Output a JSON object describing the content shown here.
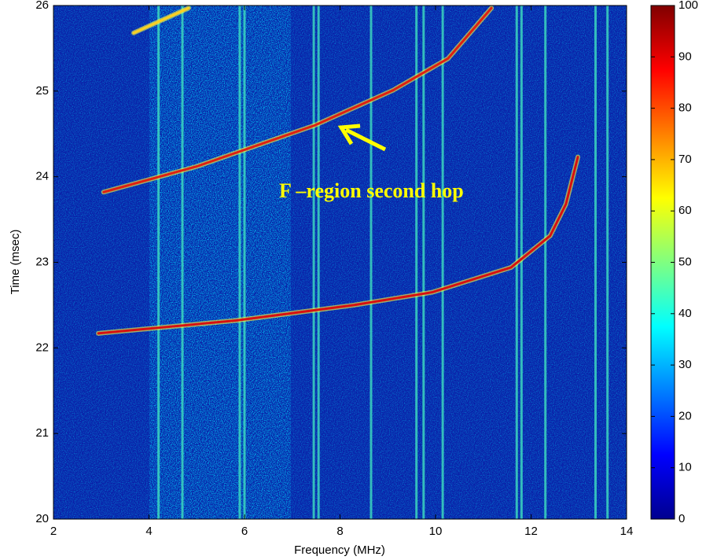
{
  "chart_data": {
    "type": "spectrogram",
    "x_label": "Frequency (MHz)",
    "y_label": "Time (msec)",
    "annotation": "F –region second hop",
    "xlim": [
      2,
      14
    ],
    "xticks": [
      2,
      4,
      6,
      8,
      10,
      12,
      14
    ],
    "ylim": [
      20,
      26
    ],
    "yticks": [
      20,
      21,
      22,
      23,
      24,
      25,
      26
    ],
    "clim": [
      0,
      100
    ],
    "cticks": [
      0,
      10,
      20,
      30,
      40,
      50,
      60,
      70,
      80,
      90,
      100
    ],
    "colormap": [
      "#00008f",
      "#0000ff",
      "#0080ff",
      "#00ffff",
      "#80ff80",
      "#ffff00",
      "#ff8000",
      "#ff0000",
      "#800000"
    ],
    "background": "#0a1fa8",
    "interference_lines": [
      4.2,
      4.7,
      5.9,
      6.0,
      7.45,
      7.55,
      8.65,
      9.6,
      9.75,
      10.15,
      11.7,
      11.8,
      12.3,
      13.35,
      13.6
    ],
    "interference_color": "#3fe0c0",
    "series": [
      {
        "color": "#d81010",
        "x": [
          2.94,
          5.82,
          8.29,
          9.93,
          11.58,
          12.4,
          12.73,
          12.98
        ],
        "values": [
          22.17,
          22.32,
          22.5,
          22.65,
          22.94,
          23.31,
          23.68,
          24.23
        ]
      },
      {
        "color": "#e02010",
        "x": [
          3.05,
          5.0,
          7.47,
          9.11,
          10.26,
          11.17
        ],
        "values": [
          23.82,
          24.12,
          24.6,
          25.01,
          25.38,
          25.97
        ]
      },
      {
        "color": "#ffd020",
        "x": [
          3.68,
          4.83
        ],
        "values": [
          25.68,
          25.97
        ]
      }
    ]
  }
}
